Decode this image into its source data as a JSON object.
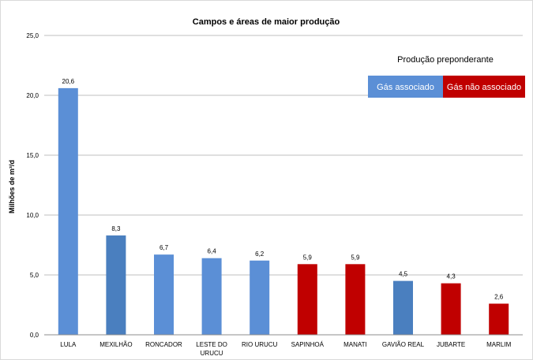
{
  "chart_data": {
    "type": "bar",
    "title": "Campos e áreas de maior produção",
    "ylabel": "Milhões de m³/d",
    "xlabel": "",
    "ylim": [
      0,
      25
    ],
    "yticks": [
      "0,0",
      "5,0",
      "10,0",
      "15,0",
      "20,0",
      "25,0"
    ],
    "grid": true,
    "categories": [
      [
        "LULA"
      ],
      [
        "MEXILHÃO"
      ],
      [
        "RONCADOR"
      ],
      [
        "LESTE DO",
        "URUCU"
      ],
      [
        "RIO URUCU"
      ],
      [
        "SAPINHOÁ"
      ],
      [
        "MANATI"
      ],
      [
        "GAVIÃO REAL"
      ],
      [
        "JUBARTE"
      ],
      [
        "MARLIM"
      ]
    ],
    "values": [
      20.6,
      8.3,
      6.7,
      6.4,
      6.2,
      5.9,
      5.9,
      4.5,
      4.3,
      2.6
    ],
    "value_labels": [
      "20,6",
      "8,3",
      "6,7",
      "6,4",
      "6,2",
      "5,9",
      "5,9",
      "4,5",
      "4,3",
      "2,6"
    ],
    "bar_colors": [
      "#5b8fd6",
      "#4a7fbf",
      "#5b8fd6",
      "#5b8fd6",
      "#5b8fd6",
      "#c00000",
      "#c00000",
      "#4a7fbf",
      "#c00000",
      "#c00000"
    ],
    "legend": {
      "title": "Produção preponderante",
      "placement": "top-right",
      "items": [
        {
          "label": "Gás associado",
          "color": "#5b8fd6"
        },
        {
          "label": "Gás não associado",
          "color": "#c00000"
        }
      ]
    }
  }
}
